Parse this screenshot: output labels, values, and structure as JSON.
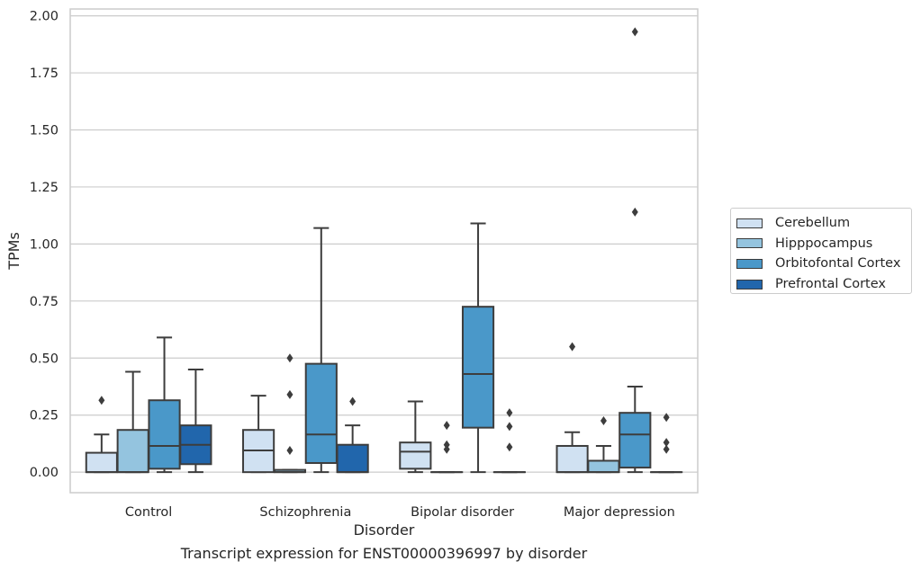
{
  "caption": "Transcript expression for ENST00000396997 by disorder",
  "chart_data": {
    "type": "box",
    "xlabel": "Disorder",
    "ylabel": "TPMs",
    "ylim": [
      -0.09,
      2.03
    ],
    "yticks": [
      "0.00",
      "0.25",
      "0.50",
      "0.75",
      "1.00",
      "1.25",
      "1.50",
      "1.75",
      "2.00"
    ],
    "categories": [
      "Control",
      "Schizophrenia",
      "Bipolar disorder",
      "Major depression"
    ],
    "grid": "horizontal",
    "legend_position": "right",
    "series": [
      {
        "name": "Cerebellum",
        "color": "#d0e1f2",
        "boxes": [
          {
            "whisker_low": 0.0,
            "q1": 0.0,
            "median": 0.0,
            "q3": 0.085,
            "whisker_high": 0.165,
            "outliers": [
              0.315
            ]
          },
          {
            "whisker_low": 0.0,
            "q1": 0.0,
            "median": 0.095,
            "q3": 0.185,
            "whisker_high": 0.335,
            "outliers": []
          },
          {
            "whisker_low": 0.0,
            "q1": 0.015,
            "median": 0.09,
            "q3": 0.13,
            "whisker_high": 0.31,
            "outliers": []
          },
          {
            "whisker_low": 0.0,
            "q1": 0.0,
            "median": 0.0,
            "q3": 0.115,
            "whisker_high": 0.175,
            "outliers": [
              0.55
            ]
          }
        ]
      },
      {
        "name": "Hipppocampus",
        "color": "#94c4df",
        "boxes": [
          {
            "whisker_low": 0.0,
            "q1": 0.0,
            "median": 0.0,
            "q3": 0.185,
            "whisker_high": 0.44,
            "outliers": []
          },
          {
            "whisker_low": 0.0,
            "q1": 0.0,
            "median": 0.0,
            "q3": 0.01,
            "whisker_high": 0.01,
            "outliers": [
              0.095,
              0.34,
              0.5
            ]
          },
          {
            "whisker_low": 0.0,
            "q1": 0.0,
            "median": 0.0,
            "q3": 0.0,
            "whisker_high": 0.0,
            "outliers": [
              0.1,
              0.12,
              0.205
            ]
          },
          {
            "whisker_low": 0.0,
            "q1": 0.0,
            "median": 0.0,
            "q3": 0.05,
            "whisker_high": 0.115,
            "outliers": [
              0.225
            ]
          }
        ]
      },
      {
        "name": "Orbitofontal Cortex",
        "color": "#4a98c9",
        "boxes": [
          {
            "whisker_low": 0.0,
            "q1": 0.015,
            "median": 0.115,
            "q3": 0.315,
            "whisker_high": 0.59,
            "outliers": []
          },
          {
            "whisker_low": 0.0,
            "q1": 0.04,
            "median": 0.165,
            "q3": 0.475,
            "whisker_high": 1.07,
            "outliers": []
          },
          {
            "whisker_low": 0.0,
            "q1": 0.195,
            "median": 0.43,
            "q3": 0.725,
            "whisker_high": 1.09,
            "outliers": []
          },
          {
            "whisker_low": 0.0,
            "q1": 0.02,
            "median": 0.165,
            "q3": 0.26,
            "whisker_high": 0.375,
            "outliers": [
              1.14,
              1.93
            ]
          }
        ]
      },
      {
        "name": "Prefrontal Cortex",
        "color": "#2166ac",
        "boxes": [
          {
            "whisker_low": 0.0,
            "q1": 0.035,
            "median": 0.12,
            "q3": 0.205,
            "whisker_high": 0.45,
            "outliers": []
          },
          {
            "whisker_low": 0.0,
            "q1": 0.0,
            "median": 0.0,
            "q3": 0.12,
            "whisker_high": 0.205,
            "outliers": [
              0.31
            ]
          },
          {
            "whisker_low": 0.0,
            "q1": 0.0,
            "median": 0.0,
            "q3": 0.0,
            "whisker_high": 0.0,
            "outliers": [
              0.11,
              0.2,
              0.26
            ]
          },
          {
            "whisker_low": 0.0,
            "q1": 0.0,
            "median": 0.0,
            "q3": 0.0,
            "whisker_high": 0.0,
            "outliers": [
              0.1,
              0.13,
              0.24
            ]
          }
        ]
      }
    ]
  }
}
